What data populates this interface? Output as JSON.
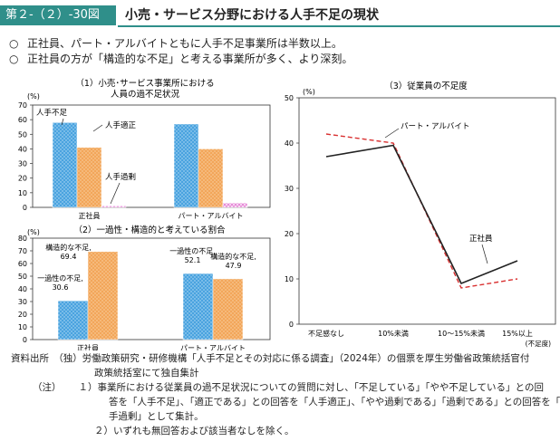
{
  "header": {
    "figure_number": "第２-（２）-30図",
    "title": "小売・サービス分野における人手不足の現状"
  },
  "summary": [
    {
      "marker": "○",
      "text": "正社員、パート・アルバイトともに人手不足事業所は半数以上。"
    },
    {
      "marker": "○",
      "text": "正社員の方が「構造的な不足」と考える事業所が多く、より深刻。"
    }
  ],
  "colors": {
    "accent": "#2f8f8a",
    "blue": "#4aa3df",
    "orange": "#f2a65a",
    "pink": "#e27bd2",
    "solid": "#222222",
    "dashed": "#d93030"
  },
  "chart_data": [
    {
      "id": "chart1",
      "type": "bar",
      "title_line1": "（1）小売･サービス事業所における",
      "title_line2": "人員の過不足状況",
      "unit": "(%)",
      "ylim": [
        0,
        70
      ],
      "yticks": [
        0,
        10,
        20,
        30,
        40,
        50,
        60,
        70
      ],
      "categories": [
        "正社員",
        "パート・アルバイト"
      ],
      "series": [
        {
          "name": "人手不足",
          "values": [
            58,
            57
          ]
        },
        {
          "name": "人手適正",
          "values": [
            41,
            40
          ]
        },
        {
          "name": "人手過剰",
          "values": [
            1,
            3
          ]
        }
      ]
    },
    {
      "id": "chart2",
      "type": "bar",
      "title": "（2）一過性・構造的と考えている割合",
      "unit": "(%)",
      "ylim": [
        0,
        80
      ],
      "yticks": [
        0,
        10,
        20,
        30,
        40,
        50,
        60,
        70,
        80
      ],
      "categories": [
        "正社員",
        "パート・アルバイト"
      ],
      "series": [
        {
          "name": "一過性の不足",
          "values": [
            30.6,
            52.1
          ]
        },
        {
          "name": "構造的な不足",
          "values": [
            69.4,
            47.9
          ]
        }
      ],
      "data_labels": [
        {
          "series": 0,
          "category": 0,
          "line1": "一過性の不足,",
          "line2": "30.6"
        },
        {
          "series": 1,
          "category": 0,
          "line1": "構造的な不足,",
          "line2": "69.4"
        },
        {
          "series": 0,
          "category": 1,
          "line1": "一過性の不足,",
          "line2": "52.1"
        },
        {
          "series": 1,
          "category": 1,
          "line1": "構造的な不足,",
          "line2": "47.9"
        }
      ]
    },
    {
      "id": "chart3",
      "type": "line",
      "title": "（3）従業員の不足度",
      "unit": "(%)",
      "x_unit": "(不足度)",
      "ylim": [
        0,
        50
      ],
      "yticks": [
        0,
        10,
        20,
        30,
        40,
        50
      ],
      "categories": [
        "不足感なし",
        "10%未満",
        "10～15%未満",
        "15%以上"
      ],
      "series": [
        {
          "name": "正社員",
          "style": "solid",
          "values": [
            37,
            39.5,
            9,
            14
          ]
        },
        {
          "name": "パート・アルバイト",
          "style": "dashed",
          "values": [
            42,
            40,
            8,
            10
          ]
        }
      ]
    }
  ],
  "footer": {
    "source_label": "資料出所",
    "source_line1": "（独）労働政策研究・研修機構「人手不足とその対応に係る調査」（2024年）の個票を厚生労働省政策統括官付",
    "source_line2": "政策統括室にて独自集計",
    "note_label": "（注）",
    "note1_line1": "１）事業所における従業員の過不足状況についての質問に対し、「不足している」「やや不足している」との回",
    "note1_line2": "答を「人手不足」、「適正である」との回答を「人手適正」、「やや過剰である」「過剰である」との回答を「人",
    "note1_line3": "手過剰」として集計。",
    "note2": "２）いずれも無回答および該当者なしを除く。"
  }
}
